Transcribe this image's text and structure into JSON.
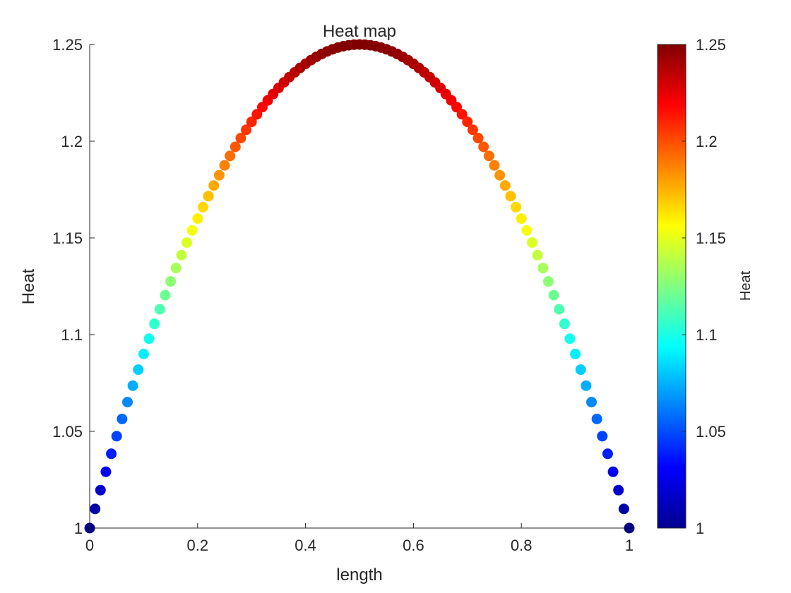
{
  "chart_data": {
    "type": "scatter",
    "title": "Heat map",
    "xlabel": "length",
    "ylabel": "Heat",
    "xlim": [
      0,
      1
    ],
    "ylim": [
      1,
      1.25
    ],
    "xticks": [
      0,
      0.2,
      0.4,
      0.6,
      0.8,
      1
    ],
    "xtick_labels": [
      "0",
      "0.2",
      "0.4",
      "0.6",
      "0.8",
      "1"
    ],
    "yticks": [
      1,
      1.05,
      1.1,
      1.15,
      1.2,
      1.25
    ],
    "ytick_labels": [
      "1",
      "1.05",
      "1.1",
      "1.15",
      "1.2",
      "1.25"
    ],
    "grid": false,
    "series": [
      {
        "x": [
          0,
          0.01,
          0.02,
          0.03,
          0.04,
          0.05,
          0.06,
          0.07,
          0.08,
          0.09,
          0.1,
          0.11,
          0.12,
          0.13,
          0.14,
          0.15,
          0.16,
          0.17,
          0.18,
          0.19,
          0.2,
          0.21,
          0.22,
          0.23,
          0.24,
          0.25,
          0.26,
          0.27,
          0.28,
          0.29,
          0.3,
          0.31,
          0.32,
          0.33,
          0.34,
          0.35,
          0.36,
          0.37,
          0.38,
          0.39,
          0.4,
          0.41,
          0.42,
          0.43,
          0.44,
          0.45,
          0.46,
          0.47,
          0.48,
          0.49,
          0.5,
          0.51,
          0.52,
          0.53,
          0.54,
          0.55,
          0.56,
          0.57,
          0.58,
          0.59,
          0.6,
          0.61,
          0.62,
          0.63,
          0.64,
          0.65,
          0.66,
          0.67,
          0.68,
          0.69,
          0.7,
          0.71,
          0.72,
          0.73,
          0.74,
          0.75,
          0.76,
          0.77,
          0.78,
          0.79,
          0.8,
          0.81,
          0.82,
          0.83,
          0.84,
          0.85,
          0.86,
          0.87,
          0.88,
          0.89,
          0.9,
          0.91,
          0.92,
          0.93,
          0.94,
          0.95,
          0.96,
          0.97,
          0.98,
          0.99,
          1
        ],
        "y": [
          1,
          1.0099,
          1.0196,
          1.0291,
          1.0384,
          1.0475,
          1.0564,
          1.0651,
          1.0736,
          1.0819,
          1.09,
          1.0979,
          1.1056,
          1.1131,
          1.1204,
          1.1275,
          1.1344,
          1.1411,
          1.1476,
          1.1539,
          1.16,
          1.1659,
          1.1716,
          1.1771,
          1.1824,
          1.1875,
          1.1924,
          1.1971,
          1.2016,
          1.2059,
          1.21,
          1.2139,
          1.2176,
          1.2211,
          1.2244,
          1.2275,
          1.2304,
          1.2331,
          1.2356,
          1.2379,
          1.24,
          1.2419,
          1.2436,
          1.2451,
          1.2464,
          1.2475,
          1.2484,
          1.2491,
          1.2496,
          1.2499,
          1.25,
          1.2499,
          1.2496,
          1.2491,
          1.2484,
          1.2475,
          1.2464,
          1.2451,
          1.2436,
          1.2419,
          1.24,
          1.2379,
          1.2356,
          1.2331,
          1.2304,
          1.2275,
          1.2244,
          1.2211,
          1.2176,
          1.2139,
          1.21,
          1.2059,
          1.2016,
          1.1971,
          1.1924,
          1.1875,
          1.1824,
          1.1771,
          1.1716,
          1.1659,
          1.16,
          1.1539,
          1.1476,
          1.1411,
          1.1344,
          1.1275,
          1.1204,
          1.1131,
          1.1056,
          1.0979,
          1.09,
          1.0819,
          1.0736,
          1.0651,
          1.0564,
          1.0475,
          1.0384,
          1.0291,
          1.0196,
          1.0099,
          1
        ]
      }
    ],
    "colormap": "jet",
    "colorbar": {
      "label": "Heat",
      "limits": [
        1,
        1.25
      ],
      "ticks": [
        1,
        1.05,
        1.1,
        1.15,
        1.2,
        1.25
      ],
      "tick_labels": [
        "1",
        "1.05",
        "1.1",
        "1.15",
        "1.2",
        "1.25"
      ],
      "placement": "right"
    }
  }
}
